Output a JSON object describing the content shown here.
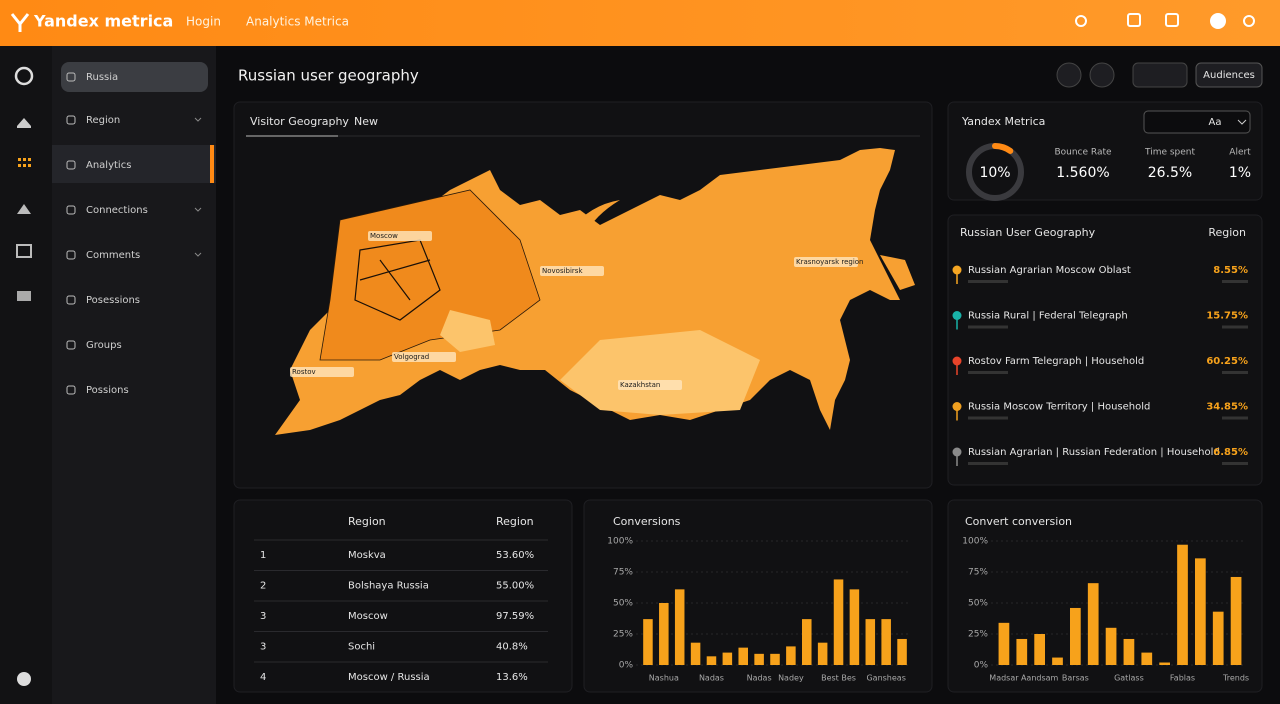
{
  "header": {
    "logo": "Yandex metrica",
    "nav": [
      "Hogin",
      "Analytics Metrica"
    ]
  },
  "sidebar": {
    "items": [
      "Russia",
      "Region",
      "Analytics",
      "Connections",
      "Comments",
      "Posessions",
      "Groups",
      "Possions"
    ]
  },
  "page": {
    "title": "Russian user geography",
    "button": "Audiences"
  },
  "map": {
    "tabs": [
      "Visitor Geography",
      "New"
    ],
    "labels": [
      "Moscow",
      "Novosibirsk",
      "Krasnoyarsk region",
      "Volgograd",
      "Rostov",
      "Kazakhstan"
    ]
  },
  "summary": {
    "title": "Yandex Metrica",
    "dropdown": "Aa",
    "donut": {
      "value": 10,
      "label": "10%"
    },
    "stats": [
      {
        "name": "Bounce Rate",
        "value": "1.560%"
      },
      {
        "name": "Time spent",
        "value": "26.5%"
      },
      {
        "name": "Alert",
        "value": "1%"
      }
    ]
  },
  "geo_list": {
    "title": "Russian User Geography",
    "column": "Region",
    "rows": [
      {
        "name": "Russian Agrarian Moscow Oblast",
        "value": "8.55%",
        "color": "#f5a623"
      },
      {
        "name": "Russia Rural | Federal Telegraph",
        "value": "15.75%",
        "color": "#19b2a8"
      },
      {
        "name": "Rostov Farm Telegraph | Household",
        "value": "60.25%",
        "color": "#e8442a"
      },
      {
        "name": "Russia Moscow Territory | Household",
        "value": "34.85%",
        "color": "#f0a020"
      },
      {
        "name": "Russian Agrarian | Russian Federation | Household",
        "value": "6.85%",
        "color": "#8a8a8a"
      }
    ]
  },
  "table": {
    "headers": [
      "Region",
      "Region"
    ],
    "rows": [
      [
        "1",
        "Moskva",
        "53.60%"
      ],
      [
        "2",
        "Bolshaya Russia",
        "55.00%"
      ],
      [
        "3",
        "Moscow",
        "97.59%"
      ],
      [
        "3",
        "Sochi",
        "40.8%"
      ],
      [
        "4",
        "Moscow / Russia",
        "13.6%"
      ]
    ]
  },
  "charts": [
    {
      "type": "bar",
      "title": "Conversions",
      "color": "#f7a21b",
      "categories": [
        null,
        "Nashua",
        null,
        null,
        "Nadas",
        null,
        null,
        "Nadas",
        null,
        "Nadey",
        null,
        null,
        "Best Bes",
        null,
        null,
        "Gansheas",
        null
      ],
      "values": [
        37,
        50,
        61,
        18,
        7,
        10,
        14,
        9,
        9,
        15,
        37,
        18,
        69,
        61,
        37,
        37,
        21
      ],
      "ylim": [
        0,
        100
      ],
      "yticks": [
        {
          "value": 0,
          "label": "0%"
        },
        {
          "value": 25,
          "label": "25%"
        },
        {
          "value": 50,
          "label": "50%"
        },
        {
          "value": 75,
          "label": "75%"
        },
        {
          "value": 100,
          "label": "100%"
        }
      ]
    },
    {
      "type": "bar",
      "title": "Convert conversion",
      "color": "#f7a21b",
      "categories": [
        "Madsar",
        null,
        "Aandsam",
        null,
        "Barsas",
        null,
        null,
        "Gatlass",
        null,
        null,
        "Fablas",
        null,
        null,
        "Trends"
      ],
      "values": [
        34,
        21,
        25,
        6,
        46,
        66,
        30,
        21,
        10,
        2,
        97,
        86,
        43,
        71
      ],
      "ylim": [
        0,
        100
      ],
      "yticks": [
        {
          "value": 0,
          "label": "0%"
        },
        {
          "value": 25,
          "label": "25%"
        },
        {
          "value": 50,
          "label": "50%"
        },
        {
          "value": 75,
          "label": "75%"
        },
        {
          "value": 100,
          "label": "100%"
        }
      ]
    }
  ]
}
